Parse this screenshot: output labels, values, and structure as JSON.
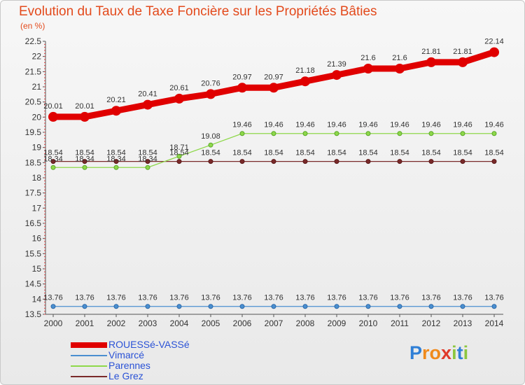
{
  "chart_data": {
    "type": "line",
    "title": "Evolution du Taux de Taxe Foncière sur les Propriétés Bâties",
    "unit_label": "(en %)",
    "xlabel": "",
    "ylabel": "",
    "x": [
      "2000",
      "2001",
      "2002",
      "2003",
      "2004",
      "2005",
      "2006",
      "2007",
      "2008",
      "2009",
      "2010",
      "2011",
      "2012",
      "2013",
      "2014"
    ],
    "ylim": [
      13.5,
      22.5
    ],
    "yticks": [
      "13.5",
      "14",
      "14.5",
      "15",
      "15.5",
      "16",
      "16.5",
      "17",
      "17.5",
      "18",
      "18.5",
      "19",
      "19.5",
      "20",
      "20.5",
      "21",
      "21.5",
      "22",
      "22.5"
    ],
    "grid": false,
    "legend_position": "bottom-left",
    "series": [
      {
        "name": "ROUESSé-VASSé",
        "color": "#e00000",
        "values": [
          20.01,
          20.01,
          20.21,
          20.41,
          20.61,
          20.76,
          20.97,
          20.97,
          21.18,
          21.39,
          21.6,
          21.6,
          21.81,
          21.81,
          22.14
        ],
        "labels": [
          "20.01",
          "20.01",
          "20.21",
          "20.41",
          "20.61",
          "20.76",
          "20.97",
          "20.97",
          "21.18",
          "21.39",
          "21.6",
          "21.6",
          "21.81",
          "21.81",
          "22.14"
        ]
      },
      {
        "name": "Vimarcé",
        "color": "#4a8fd0",
        "values": [
          13.76,
          13.76,
          13.76,
          13.76,
          13.76,
          13.76,
          13.76,
          13.76,
          13.76,
          13.76,
          13.76,
          13.76,
          13.76,
          13.76,
          13.76
        ],
        "labels": [
          "13.76",
          "13.76",
          "13.76",
          "13.76",
          "13.76",
          "13.76",
          "13.76",
          "13.76",
          "13.76",
          "13.76",
          "13.76",
          "13.76",
          "13.76",
          "13.76",
          "13.76"
        ]
      },
      {
        "name": "Parennes",
        "color": "#8ed84a",
        "values": [
          18.34,
          18.34,
          18.34,
          18.34,
          18.71,
          19.08,
          19.46,
          19.46,
          19.46,
          19.46,
          19.46,
          19.46,
          19.46,
          19.46,
          19.46
        ],
        "labels": [
          "18.34",
          "18.34",
          "18.34",
          "18.34",
          "18.71",
          "19.08",
          "19.46",
          "19.46",
          "19.46",
          "19.46",
          "19.46",
          "19.46",
          "19.46",
          "19.46",
          "19.46"
        ]
      },
      {
        "name": "Le Grez",
        "color": "#7a2a2a",
        "values": [
          18.54,
          18.54,
          18.54,
          18.54,
          18.54,
          18.54,
          18.54,
          18.54,
          18.54,
          18.54,
          18.54,
          18.54,
          18.54,
          18.54,
          18.54
        ],
        "labels": [
          "18.54",
          "18.54",
          "18.54",
          "18.54",
          "18.54",
          "18.54",
          "18.54",
          "18.54",
          "18.54",
          "18.54",
          "18.54",
          "18.54",
          "18.54",
          "18.54",
          "18.54"
        ]
      }
    ]
  },
  "brand": {
    "letters": [
      "P",
      "r",
      "o",
      "x",
      "i",
      "t",
      "i"
    ],
    "colors": [
      "#2f7fd6",
      "#f08a1c",
      "#f08a1c",
      "#e03a2a",
      "#8cc63f",
      "#2f7fd6",
      "#8cc63f"
    ]
  }
}
